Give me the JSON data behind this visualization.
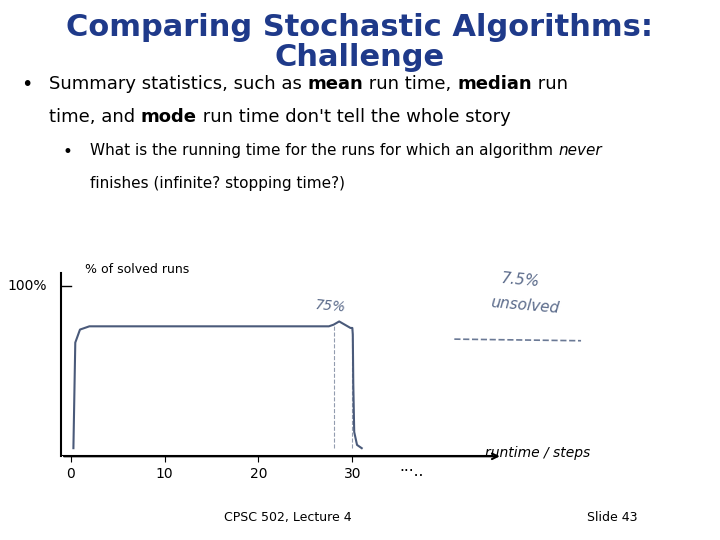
{
  "title_line1": "Comparing Stochastic Algorithms:",
  "title_line2": "Challenge",
  "title_color": "#1F3A8A",
  "title_fontsize": 22,
  "footer_left": "CPSC 502, Lecture 4",
  "footer_right": "Slide 43",
  "line_color": "#4a5a7a",
  "handwriting_color": "#5a6a8a",
  "background_color": "#ffffff",
  "chart_line_x": [
    0.3,
    0.5,
    1,
    2,
    3,
    5,
    10,
    15,
    20,
    24,
    26,
    27.5,
    28,
    28.3,
    28.6,
    28.9,
    29.2,
    29.5,
    29.8,
    30.0,
    30.05,
    30.1,
    30.2,
    30.5,
    31
  ],
  "chart_line_y": [
    0,
    65,
    73,
    75,
    75,
    75,
    75,
    75,
    75,
    75,
    75,
    75,
    76,
    77,
    78,
    77,
    76,
    75,
    74,
    74,
    70,
    40,
    10,
    2,
    0
  ]
}
